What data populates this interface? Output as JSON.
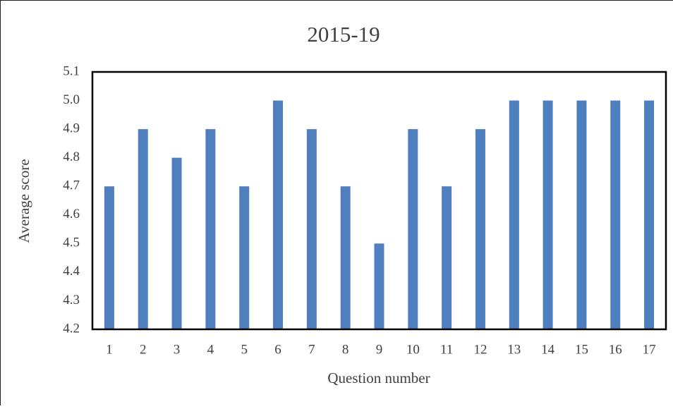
{
  "chart_data": {
    "type": "bar",
    "title": "2015-19",
    "x_label": "Question number",
    "y_label": "Average score",
    "categories": [
      "1",
      "2",
      "3",
      "4",
      "5",
      "6",
      "7",
      "8",
      "9",
      "10",
      "11",
      "12",
      "13",
      "14",
      "15",
      "16",
      "17"
    ],
    "values": [
      4.7,
      4.9,
      4.8,
      4.9,
      4.7,
      5.0,
      4.9,
      4.7,
      4.5,
      4.9,
      4.7,
      4.9,
      5.0,
      5.0,
      5.0,
      5.0,
      5.0
    ],
    "color": "#4f7fbe",
    "ylim": [
      4.2,
      5.1
    ],
    "yticks": [
      4.2,
      4.3,
      4.4,
      4.5,
      4.6,
      4.7,
      4.8,
      4.9,
      {
        "value": 5,
        "label": "5.0"
      },
      5.1
    ],
    "grid": false
  }
}
